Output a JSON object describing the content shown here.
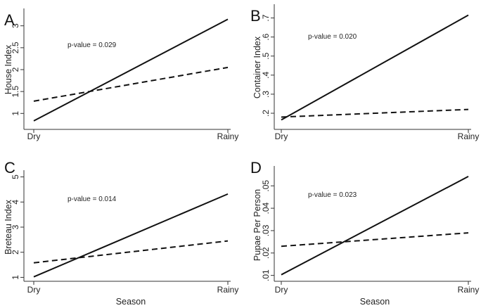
{
  "chart_data": [
    {
      "type": "line",
      "panel": "A",
      "ylabel": "House Index",
      "xlabel": "",
      "categories": [
        "Dry",
        "Rainy"
      ],
      "ylim": [
        0.7,
        3.3
      ],
      "yticks": [
        1,
        1.5,
        2,
        2.5,
        3
      ],
      "ytick_labels": [
        "1",
        "1.5",
        "2",
        "2.5",
        "3"
      ],
      "annotation": "p-value = 0.029",
      "series": [
        {
          "style": "solid",
          "values": [
            0.83,
            3.15
          ]
        },
        {
          "style": "dashed",
          "values": [
            1.28,
            2.05
          ]
        }
      ]
    },
    {
      "type": "line",
      "panel": "B",
      "ylabel": "Container Index",
      "xlabel": "",
      "categories": [
        "Dry",
        "Rainy"
      ],
      "ylim": [
        0.13,
        0.75
      ],
      "yticks": [
        0.2,
        0.3,
        0.4,
        0.5,
        0.6,
        0.7
      ],
      "ytick_labels": [
        ".2",
        ".3",
        ".4",
        ".5",
        ".6",
        ".7"
      ],
      "annotation": "p-value = 0.020",
      "series": [
        {
          "style": "solid",
          "values": [
            0.165,
            0.715
          ]
        },
        {
          "style": "dashed",
          "values": [
            0.18,
            0.22
          ]
        }
      ]
    },
    {
      "type": "line",
      "panel": "C",
      "ylabel": "Breteau Index",
      "xlabel": "Season",
      "categories": [
        "Dry",
        "Rainy"
      ],
      "ylim": [
        0.9,
        5.1
      ],
      "yticks": [
        1,
        2,
        3,
        4,
        5
      ],
      "ytick_labels": [
        "1",
        "2",
        "3",
        "4",
        "5"
      ],
      "annotation": "p-value = 0.014",
      "series": [
        {
          "style": "solid",
          "values": [
            1.02,
            4.32
          ]
        },
        {
          "style": "dashed",
          "values": [
            1.58,
            2.45
          ]
        }
      ]
    },
    {
      "type": "line",
      "panel": "D",
      "ylabel": "Pupae Per Person",
      "xlabel": "Season",
      "categories": [
        "Dry",
        "Rainy"
      ],
      "ylim": [
        0.008,
        0.057
      ],
      "yticks": [
        0.01,
        0.02,
        0.03,
        0.04,
        0.05
      ],
      "ytick_labels": [
        ".01",
        ".02",
        ".03",
        ".04",
        ".05"
      ],
      "annotation": "p-value = 0.023",
      "series": [
        {
          "style": "solid",
          "values": [
            0.0103,
            0.0542
          ]
        },
        {
          "style": "dashed",
          "values": [
            0.023,
            0.029
          ]
        }
      ]
    }
  ]
}
